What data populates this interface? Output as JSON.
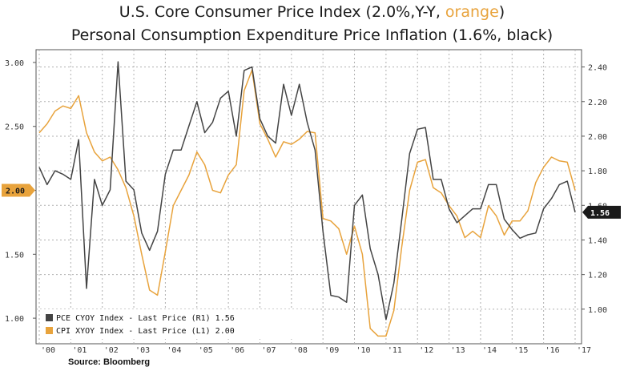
{
  "chart_data": {
    "type": "line",
    "title": {
      "line1_prefix": "U.S. Core Consumer Price Index (2.0%,Y-Y, ",
      "line1_highlight": "orange",
      "line1_suffix": ")",
      "line2": "Personal Consumption Expenditure Price Inflation (1.6%, black)"
    },
    "source": "Source: Bloomberg",
    "x_ticks": [
      "'00",
      "'01",
      "'02",
      "'03",
      "'04",
      "'05",
      "'06",
      "'07",
      "'08",
      "'09",
      "'10",
      "'11",
      "'12",
      "'13",
      "'14",
      "'15",
      "'16",
      "'17"
    ],
    "x_range": [
      2000,
      2017
    ],
    "left_axis": {
      "range": [
        0.8,
        3.1
      ],
      "ticks": [
        "1.00",
        "1.50",
        "2.00",
        "2.50",
        "3.00"
      ],
      "tick_values": [
        1.0,
        1.5,
        2.0,
        2.5,
        3.0
      ]
    },
    "right_axis": {
      "range": [
        0.8,
        2.5
      ],
      "ticks": [
        "1.00",
        "1.20",
        "1.40",
        "1.60",
        "1.80",
        "2.00",
        "2.20",
        "2.40"
      ],
      "tick_values": [
        1.0,
        1.2,
        1.4,
        1.6,
        1.8,
        2.0,
        2.2,
        2.4
      ]
    },
    "grid": true,
    "legend_position": "bottom-left",
    "series": [
      {
        "name": "PCE CYOY Index - Last Price (R1) 1.56",
        "axis": "right",
        "color": "#444444",
        "badge": "1.56",
        "x": [
          2000.0,
          2000.25,
          2000.5,
          2000.75,
          2001.0,
          2001.25,
          2001.5,
          2001.75,
          2002.0,
          2002.25,
          2002.5,
          2002.75,
          2003.0,
          2003.25,
          2003.5,
          2003.75,
          2004.0,
          2004.25,
          2004.5,
          2004.75,
          2005.0,
          2005.25,
          2005.5,
          2005.75,
          2006.0,
          2006.25,
          2006.5,
          2006.75,
          2007.0,
          2007.25,
          2007.5,
          2007.75,
          2008.0,
          2008.25,
          2008.5,
          2008.75,
          2009.0,
          2009.25,
          2009.5,
          2009.75,
          2010.0,
          2010.25,
          2010.5,
          2010.75,
          2011.0,
          2011.25,
          2011.5,
          2011.75,
          2012.0,
          2012.25,
          2012.5,
          2012.75,
          2013.0,
          2013.25,
          2013.5,
          2013.75,
          2014.0,
          2014.25,
          2014.5,
          2014.75,
          2015.0,
          2015.25,
          2015.5,
          2015.75,
          2016.0,
          2016.25,
          2016.5,
          2016.75,
          2017.0
        ],
        "values": [
          1.82,
          1.72,
          1.8,
          1.78,
          1.75,
          1.98,
          1.12,
          1.75,
          1.6,
          1.69,
          2.43,
          1.74,
          1.69,
          1.44,
          1.34,
          1.45,
          1.78,
          1.92,
          1.92,
          2.06,
          2.2,
          2.02,
          2.08,
          2.22,
          2.26,
          2.0,
          2.38,
          2.4,
          2.1,
          2.0,
          1.96,
          2.3,
          2.12,
          2.3,
          2.08,
          1.92,
          1.45,
          1.08,
          1.07,
          1.04,
          1.6,
          1.66,
          1.35,
          1.2,
          0.94,
          1.15,
          1.52,
          1.9,
          2.04,
          2.05,
          1.75,
          1.75,
          1.58,
          1.5,
          1.54,
          1.58,
          1.58,
          1.72,
          1.72,
          1.52,
          1.46,
          1.41,
          1.43,
          1.44,
          1.58,
          1.64,
          1.72,
          1.74,
          1.56
        ]
      },
      {
        "name": "CPI XYOY Index - Last Price (L1) 2.00",
        "axis": "left",
        "color": "#e8a33c",
        "badge": "2.00",
        "x": [
          2000.0,
          2000.25,
          2000.5,
          2000.75,
          2001.0,
          2001.25,
          2001.5,
          2001.75,
          2002.0,
          2002.25,
          2002.5,
          2002.75,
          2003.0,
          2003.25,
          2003.5,
          2003.75,
          2004.0,
          2004.25,
          2004.5,
          2004.75,
          2005.0,
          2005.25,
          2005.5,
          2005.75,
          2006.0,
          2006.25,
          2006.5,
          2006.75,
          2007.0,
          2007.25,
          2007.5,
          2007.75,
          2008.0,
          2008.25,
          2008.5,
          2008.75,
          2009.0,
          2009.25,
          2009.5,
          2009.75,
          2010.0,
          2010.25,
          2010.5,
          2010.75,
          2011.0,
          2011.25,
          2011.5,
          2011.75,
          2012.0,
          2012.25,
          2012.5,
          2012.75,
          2013.0,
          2013.25,
          2013.5,
          2013.75,
          2014.0,
          2014.25,
          2014.5,
          2014.75,
          2015.0,
          2015.25,
          2015.5,
          2015.75,
          2016.0,
          2016.25,
          2016.5,
          2016.75,
          2017.0
        ],
        "values": [
          2.45,
          2.52,
          2.62,
          2.66,
          2.64,
          2.74,
          2.45,
          2.3,
          2.23,
          2.26,
          2.16,
          2.02,
          1.8,
          1.5,
          1.22,
          1.18,
          1.52,
          1.88,
          2.0,
          2.12,
          2.3,
          2.2,
          2.0,
          1.98,
          2.12,
          2.2,
          2.78,
          2.94,
          2.52,
          2.4,
          2.26,
          2.38,
          2.36,
          2.4,
          2.46,
          2.45,
          1.78,
          1.76,
          1.7,
          1.5,
          1.72,
          1.5,
          0.92,
          0.86,
          0.86,
          1.06,
          1.56,
          2.0,
          2.22,
          2.24,
          2.02,
          1.98,
          1.88,
          1.8,
          1.63,
          1.68,
          1.63,
          1.88,
          1.8,
          1.65,
          1.76,
          1.76,
          1.84,
          2.06,
          2.18,
          2.26,
          2.23,
          2.22,
          2.0
        ]
      }
    ]
  }
}
